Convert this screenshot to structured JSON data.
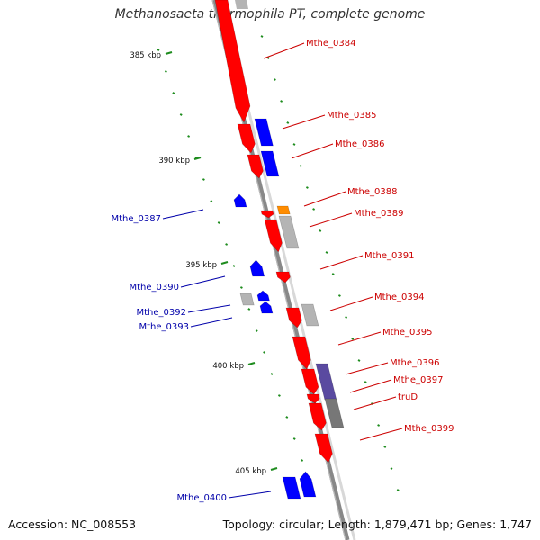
{
  "title": "Methanosaeta thermophila PT, complete genome",
  "footer": {
    "accession": "Accession: NC_008553",
    "summary": "Topology: circular; Length: 1,879,471 bp; Genes: 1,747"
  },
  "colors": {
    "forward_gene": "#ff0000",
    "reverse_gene": "#0000ff",
    "other_gene": "#b4b4b4",
    "rna_gene": "#ff8c00",
    "forward_label": "#cc0000",
    "reverse_label": "#0000aa",
    "tick": "#1e8c1e",
    "backbone": "#888888"
  },
  "scale_ticks": [
    {
      "label": "385 kbp"
    },
    {
      "label": "390 kbp"
    },
    {
      "label": "395 kbp"
    },
    {
      "label": "400 kbp"
    },
    {
      "label": "405 kbp"
    }
  ],
  "gene_labels": [
    {
      "text": "Mthe_0384",
      "strand": "forward"
    },
    {
      "text": "Mthe_0385",
      "strand": "forward"
    },
    {
      "text": "Mthe_0386",
      "strand": "forward"
    },
    {
      "text": "Mthe_0388",
      "strand": "forward"
    },
    {
      "text": "Mthe_0389",
      "strand": "forward"
    },
    {
      "text": "Mthe_0391",
      "strand": "forward"
    },
    {
      "text": "Mthe_0394",
      "strand": "forward"
    },
    {
      "text": "Mthe_0395",
      "strand": "forward"
    },
    {
      "text": "Mthe_0396",
      "strand": "forward"
    },
    {
      "text": "Mthe_0397",
      "strand": "forward"
    },
    {
      "text": "truD",
      "strand": "forward"
    },
    {
      "text": "Mthe_0399",
      "strand": "forward"
    },
    {
      "text": "Mthe_0387",
      "strand": "reverse"
    },
    {
      "text": "Mthe_0390",
      "strand": "reverse"
    },
    {
      "text": "Mthe_0392",
      "strand": "reverse"
    },
    {
      "text": "Mthe_0393",
      "strand": "reverse"
    },
    {
      "text": "Mthe_0400",
      "strand": "reverse"
    }
  ]
}
